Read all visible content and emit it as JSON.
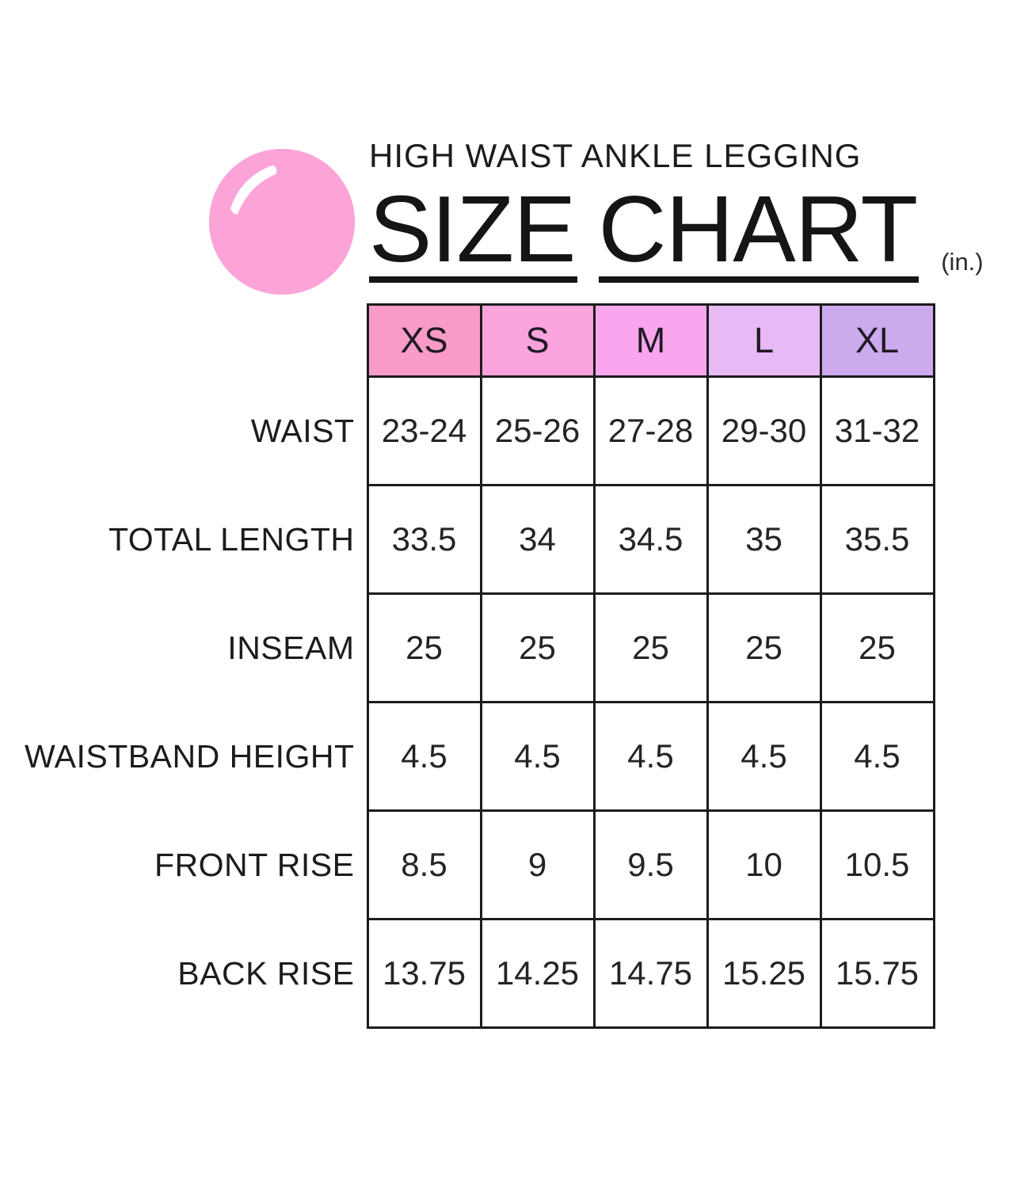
{
  "header": {
    "subtitle": "HIGH WAIST ANKLE LEGGING",
    "title_word1": "SIZE",
    "title_word2": "CHART",
    "unit": "(in.)"
  },
  "logo": {
    "name": "pink-bubble-logo",
    "color": "#FCA4D8",
    "highlight_color": "#FFFFFF"
  },
  "chart_data": {
    "type": "table",
    "title": "HIGH WAIST ANKLE LEGGING SIZE CHART (in.)",
    "unit": "in.",
    "columns": [
      "XS",
      "S",
      "M",
      "L",
      "XL"
    ],
    "column_colors": [
      "#F89CC7",
      "#FAA3DC",
      "#F9A6EE",
      "#E7B9F5",
      "#CDA9EE"
    ],
    "border_color": "#1c1c1c",
    "rows": [
      {
        "label": "WAIST",
        "values": [
          "23-24",
          "25-26",
          "27-28",
          "29-30",
          "31-32"
        ]
      },
      {
        "label": "TOTAL LENGTH",
        "values": [
          "33.5",
          "34",
          "34.5",
          "35",
          "35.5"
        ]
      },
      {
        "label": "INSEAM",
        "values": [
          "25",
          "25",
          "25",
          "25",
          "25"
        ]
      },
      {
        "label": "WAISTBAND HEIGHT",
        "values": [
          "4.5",
          "4.5",
          "4.5",
          "4.5",
          "4.5"
        ]
      },
      {
        "label": "FRONT RISE",
        "values": [
          "8.5",
          "9",
          "9.5",
          "10",
          "10.5"
        ]
      },
      {
        "label": "BACK RISE",
        "values": [
          "13.75",
          "14.25",
          "14.75",
          "15.25",
          "15.75"
        ]
      }
    ]
  }
}
